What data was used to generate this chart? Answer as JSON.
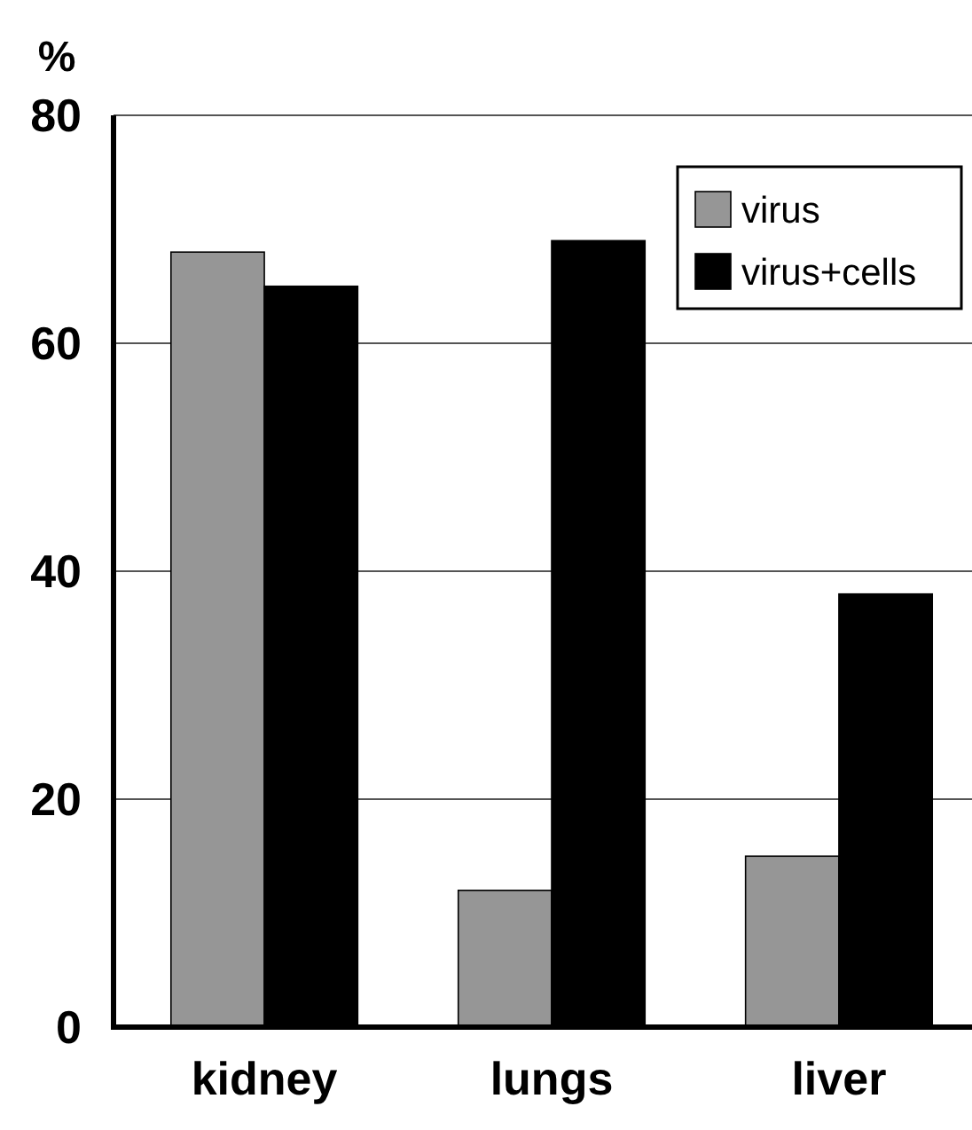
{
  "chart_data": {
    "type": "bar",
    "ylabel": "%",
    "categories": [
      "kidney",
      "lungs",
      "liver"
    ],
    "series": [
      {
        "name": "virus",
        "color": "#969696",
        "values": [
          68,
          12,
          15
        ]
      },
      {
        "name": "virus+cells",
        "color": "#000000",
        "values": [
          65,
          69,
          38
        ]
      }
    ],
    "ylim": [
      0,
      80
    ],
    "yticks": [
      0,
      20,
      40,
      60,
      80
    ],
    "grid": "y",
    "legend": "top right"
  }
}
